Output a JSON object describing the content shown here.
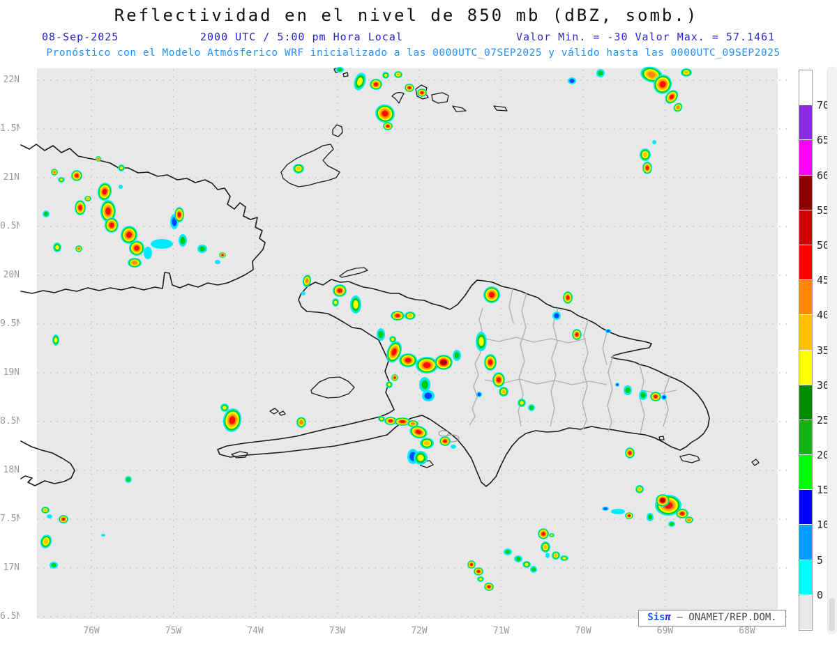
{
  "header": {
    "title": "Reflectividad en el nivel de 850 mb (dBZ, somb.)",
    "date": "08-Sep-2025",
    "time": "2000 UTC / 5:00 pm Hora Local",
    "min_max": "Valor Min. = -30  Valor Max. = 57.1461",
    "forecast_line": "Pronóstico con el Modelo Atmósferico WRF inicializado a las 0000UTC_07SEP2025 y válido hasta las  0000UTC_09SEP2025"
  },
  "map": {
    "background": "#e8e8e8",
    "grid_color": "#b3b3b3",
    "coast_color": "#1a1a1a",
    "border_color": "#b0b0b0",
    "x_ticks": [
      "76W",
      "75W",
      "74W",
      "73W",
      "72W",
      "71W",
      "70W",
      "69W",
      "68W"
    ],
    "y_ticks": [
      "22N",
      "1.5N",
      "21N",
      "0.5N",
      "20N",
      "9.5N",
      "19N",
      "8.5N",
      "18N",
      "7.5N",
      "17N",
      "6.5N"
    ]
  },
  "colorbar": {
    "segments": [
      {
        "color": "#ffffff"
      },
      {
        "color": "#8b2be2",
        "label": "70"
      },
      {
        "color": "#ff00ff",
        "label": "65"
      },
      {
        "color": "#8f0000",
        "label": "60"
      },
      {
        "color": "#d00000",
        "label": "55"
      },
      {
        "color": "#fe0000",
        "label": "50"
      },
      {
        "color": "#ff8800",
        "label": "45"
      },
      {
        "color": "#ffc000",
        "label": "40"
      },
      {
        "color": "#ffff00",
        "label": "35"
      },
      {
        "color": "#008c00",
        "label": "30"
      },
      {
        "color": "#14b414",
        "label": "25"
      },
      {
        "color": "#00ff00",
        "label": "20"
      },
      {
        "color": "#0000ff",
        "label": "15"
      },
      {
        "color": "#009cff",
        "label": "10"
      },
      {
        "color": "#00ffff",
        "label": "5"
      },
      {
        "color": "#e8e8e8",
        "label": "0"
      }
    ]
  },
  "badge": {
    "sis": "Sis",
    "pi": "π",
    "rest": " – ONAMET/REP.DOM."
  },
  "chart_data": {
    "type": "heatmap",
    "title": "Reflectividad en el nivel de 850 mb (dBZ, somb.)",
    "valid_time": "08-Sep-2025 2000 UTC / 5:00 pm Hora Local",
    "model": "WRF inicializado 0000UTC_07SEP2025, válido hasta 0000UTC_09SEP2025",
    "value_min": -30,
    "value_max": 57.1461,
    "units": "dBZ",
    "x_range_lon": [
      "76W",
      "68W"
    ],
    "y_range_lat": [
      "16.5N",
      "22N"
    ],
    "levels": [
      0,
      5,
      10,
      15,
      20,
      25,
      30,
      35,
      40,
      45,
      50,
      55,
      60,
      65,
      70
    ],
    "level_colors": [
      "#00ffff",
      "#009cff",
      "#0000ff",
      "#00ff00",
      "#14b414",
      "#008c00",
      "#ffff00",
      "#ffc000",
      "#ff8800",
      "#fe0000",
      "#d00000",
      "#8f0000",
      "#ff00ff",
      "#8b2be2",
      "#ffffff"
    ],
    "cells_format": [
      "x_px",
      "y_px",
      "rx_px",
      "ry_px",
      "max_dbz",
      "rot_deg"
    ],
    "cells": [
      [
        516,
        117,
        8,
        13,
        35,
        18
      ],
      [
        539,
        121,
        9,
        8,
        50,
        0
      ],
      [
        553,
        108,
        5,
        5,
        35,
        0
      ],
      [
        571,
        107,
        6,
        5,
        40,
        0
      ],
      [
        587,
        126,
        7,
        6,
        50,
        0
      ],
      [
        605,
        133,
        7,
        6,
        50,
        0
      ],
      [
        552,
        163,
        14,
        13,
        52,
        20
      ],
      [
        556,
        181,
        7,
        6,
        50,
        0
      ],
      [
        487,
        100,
        6,
        4,
        30,
        0
      ],
      [
        428,
        242,
        8,
        7,
        40,
        0
      ],
      [
        820,
        116,
        6,
        5,
        12,
        0
      ],
      [
        861,
        105,
        6,
        6,
        22,
        0
      ],
      [
        934,
        107,
        16,
        11,
        46,
        15
      ],
      [
        950,
        121,
        13,
        14,
        52,
        25
      ],
      [
        963,
        139,
        8,
        11,
        50,
        40
      ],
      [
        972,
        154,
        6,
        7,
        46,
        40
      ],
      [
        984,
        104,
        8,
        6,
        40,
        0
      ],
      [
        938,
        204,
        3,
        3,
        5,
        0
      ],
      [
        925,
        222,
        8,
        9,
        40,
        0
      ],
      [
        928,
        241,
        7,
        9,
        50,
        0
      ],
      [
        78,
        247,
        5,
        5,
        46,
        0
      ],
      [
        88,
        258,
        5,
        4,
        35,
        0
      ],
      [
        110,
        252,
        8,
        8,
        50,
        0
      ],
      [
        141,
        228,
        4,
        4,
        46,
        0
      ],
      [
        174,
        241,
        5,
        5,
        35,
        0
      ],
      [
        150,
        275,
        10,
        13,
        52,
        10
      ],
      [
        155,
        303,
        11,
        16,
        53,
        0
      ],
      [
        160,
        323,
        10,
        11,
        50,
        0
      ],
      [
        115,
        298,
        8,
        11,
        50,
        0
      ],
      [
        126,
        285,
        5,
        4,
        40,
        0
      ],
      [
        82,
        355,
        6,
        7,
        35,
        0
      ],
      [
        113,
        357,
        5,
        5,
        46,
        0
      ],
      [
        185,
        337,
        12,
        13,
        52,
        15
      ],
      [
        196,
        356,
        11,
        11,
        50,
        0
      ],
      [
        193,
        377,
        10,
        7,
        46,
        0
      ],
      [
        212,
        363,
        6,
        9,
        5,
        0
      ],
      [
        232,
        350,
        16,
        7,
        6,
        0
      ],
      [
        250,
        318,
        6,
        11,
        12,
        0
      ],
      [
        257,
        308,
        7,
        11,
        48,
        0
      ],
      [
        262,
        345,
        6,
        9,
        22,
        0
      ],
      [
        290,
        357,
        7,
        6,
        20,
        0
      ],
      [
        319,
        366,
        5,
        4,
        48,
        0
      ],
      [
        312,
        376,
        4,
        3,
        5,
        0
      ],
      [
        173,
        268,
        3,
        3,
        5,
        0
      ],
      [
        66,
        307,
        5,
        5,
        20,
        0
      ],
      [
        80,
        488,
        5,
        8,
        35,
        0
      ],
      [
        440,
        403,
        6,
        9,
        46,
        10
      ],
      [
        435,
        421,
        3,
        3,
        5,
        0
      ],
      [
        487,
        417,
        10,
        9,
        52,
        0
      ],
      [
        481,
        434,
        5,
        6,
        35,
        0
      ],
      [
        510,
        437,
        8,
        13,
        35,
        0
      ],
      [
        570,
        453,
        10,
        7,
        52,
        0
      ],
      [
        588,
        453,
        8,
        6,
        40,
        0
      ],
      [
        546,
        480,
        6,
        9,
        28,
        0
      ],
      [
        563,
        487,
        5,
        5,
        35,
        0
      ],
      [
        705,
        423,
        12,
        12,
        52,
        0
      ],
      [
        814,
        427,
        7,
        9,
        48,
        0
      ],
      [
        798,
        453,
        6,
        6,
        8,
        0
      ],
      [
        827,
        480,
        7,
        8,
        50,
        0
      ],
      [
        872,
        475,
        4,
        3,
        8,
        0
      ],
      [
        687,
        566,
        4,
        4,
        12,
        0
      ],
      [
        565,
        505,
        10,
        16,
        52,
        20
      ],
      [
        585,
        517,
        13,
        10,
        50,
        0
      ],
      [
        612,
        524,
        16,
        12,
        52,
        0
      ],
      [
        636,
        520,
        13,
        11,
        55,
        0
      ],
      [
        655,
        510,
        6,
        8,
        22,
        0
      ],
      [
        566,
        542,
        5,
        5,
        48,
        0
      ],
      [
        558,
        552,
        5,
        5,
        35,
        0
      ],
      [
        609,
        552,
        8,
        11,
        28,
        0
      ],
      [
        614,
        568,
        9,
        8,
        14,
        0
      ],
      [
        690,
        490,
        8,
        14,
        35,
        0
      ],
      [
        703,
        520,
        9,
        12,
        50,
        0
      ],
      [
        715,
        545,
        9,
        11,
        52,
        0
      ],
      [
        722,
        562,
        7,
        7,
        40,
        0
      ],
      [
        748,
        578,
        6,
        6,
        35,
        0
      ],
      [
        762,
        585,
        5,
        5,
        25,
        0
      ],
      [
        333,
        603,
        13,
        17,
        50,
        10
      ],
      [
        322,
        585,
        6,
        6,
        35,
        0
      ],
      [
        432,
        606,
        7,
        8,
        46,
        0
      ],
      [
        547,
        601,
        5,
        4,
        35,
        0
      ],
      [
        560,
        604,
        9,
        6,
        48,
        0
      ],
      [
        577,
        605,
        12,
        6,
        52,
        0
      ],
      [
        592,
        608,
        8,
        5,
        46,
        0
      ],
      [
        600,
        620,
        13,
        9,
        52,
        15
      ],
      [
        612,
        636,
        10,
        8,
        40,
        0
      ],
      [
        592,
        655,
        8,
        11,
        14,
        0
      ],
      [
        603,
        657,
        10,
        10,
        35,
        0
      ],
      [
        638,
        633,
        8,
        7,
        48,
        0
      ],
      [
        650,
        641,
        4,
        3,
        5,
        0
      ],
      [
        184,
        688,
        5,
        5,
        25,
        0
      ],
      [
        65,
        732,
        6,
        5,
        42,
        0
      ],
      [
        71,
        741,
        4,
        3,
        5,
        0
      ],
      [
        91,
        745,
        7,
        6,
        48,
        0
      ],
      [
        66,
        777,
        8,
        10,
        40,
        20
      ],
      [
        77,
        811,
        6,
        5,
        25,
        0
      ],
      [
        148,
        768,
        3,
        2,
        5,
        0
      ],
      [
        676,
        810,
        6,
        6,
        48,
        0
      ],
      [
        686,
        820,
        7,
        6,
        50,
        0
      ],
      [
        689,
        831,
        5,
        4,
        35,
        0
      ],
      [
        701,
        842,
        7,
        6,
        48,
        0
      ],
      [
        728,
        792,
        6,
        5,
        25,
        0
      ],
      [
        743,
        802,
        6,
        5,
        25,
        0
      ],
      [
        755,
        810,
        6,
        5,
        35,
        0
      ],
      [
        765,
        817,
        5,
        5,
        18,
        0
      ],
      [
        779,
        766,
        8,
        8,
        50,
        0
      ],
      [
        791,
        768,
        4,
        3,
        35,
        0
      ],
      [
        782,
        785,
        7,
        8,
        42,
        0
      ],
      [
        785,
        797,
        3,
        4,
        5,
        0
      ],
      [
        797,
        797,
        6,
        6,
        42,
        0
      ],
      [
        809,
        801,
        6,
        4,
        35,
        0
      ],
      [
        885,
        552,
        3,
        3,
        8,
        0
      ],
      [
        900,
        560,
        6,
        7,
        25,
        0
      ],
      [
        922,
        567,
        6,
        7,
        25,
        0
      ],
      [
        940,
        569,
        8,
        7,
        48,
        0
      ],
      [
        952,
        570,
        4,
        4,
        8,
        0
      ],
      [
        903,
        650,
        7,
        8,
        48,
        0
      ],
      [
        917,
        702,
        6,
        6,
        40,
        0
      ],
      [
        958,
        725,
        19,
        15,
        52,
        0
      ],
      [
        950,
        718,
        10,
        9,
        54,
        0
      ],
      [
        978,
        737,
        9,
        7,
        48,
        0
      ],
      [
        988,
        746,
        6,
        5,
        46,
        0
      ],
      [
        932,
        742,
        5,
        6,
        28,
        0
      ],
      [
        963,
        752,
        5,
        4,
        30,
        0
      ],
      [
        886,
        734,
        10,
        4,
        5,
        0
      ],
      [
        902,
        740,
        6,
        5,
        48,
        0
      ],
      [
        868,
        730,
        5,
        3,
        8,
        0
      ]
    ]
  }
}
